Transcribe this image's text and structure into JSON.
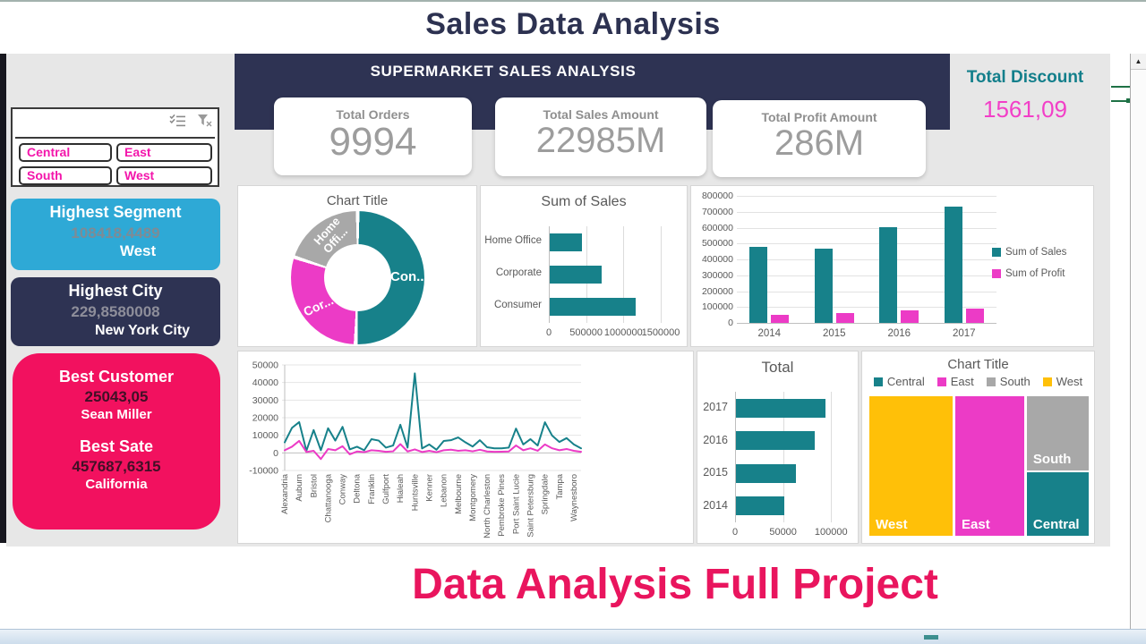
{
  "window": {
    "page_title": "Sales Data Analysis",
    "footer_title": "Data Analysis Full Project"
  },
  "header": {
    "title": "SUPERMARKET SALES ANALYSIS",
    "kpis": [
      {
        "label": "Total Orders",
        "value": "9994"
      },
      {
        "label": "Total Sales Amount",
        "value": "22985M"
      },
      {
        "label": "Total Profit Amount",
        "value": "286M"
      }
    ],
    "discount": {
      "label": "Total Discount",
      "value": "1561,09"
    }
  },
  "slicer": {
    "icons": [
      "multi-select-icon",
      "clear-filter-icon"
    ],
    "items": [
      "Central",
      "East",
      "South",
      "West"
    ]
  },
  "info_cards": {
    "highest_segment": {
      "title": "Highest Segment",
      "value": "108418,4489",
      "name": "West"
    },
    "highest_city": {
      "title": "Highest City",
      "value": "229,8580008",
      "name": "New York City"
    },
    "best": {
      "customer_title": "Best Customer",
      "customer_value": "25043,05",
      "customer_name": "Sean Miller",
      "state_title": "Best Sate",
      "state_value": "457687,6315",
      "state_name": "California"
    }
  },
  "colors": {
    "teal": "#17818A",
    "magenta": "#EC3BC6",
    "gray": "#A8A8A8",
    "yellow": "#FFC008",
    "navy": "#2E3353",
    "cyan_card": "#2EA9D6",
    "pink_card": "#F2115F",
    "footer_pink": "#E9155E",
    "slicer_pink": "#F316AB",
    "discount_teal": "#137F8B",
    "discount_pink": "#F23FC7",
    "excel_green": "#1E7145"
  },
  "scrollbar": {
    "up_arrow": "▲"
  },
  "chart_data": [
    {
      "type": "pie",
      "title": "Chart Title",
      "categories": [
        "Consumer",
        "Corporate",
        "Home Office"
      ],
      "displayed_labels": [
        "Con...",
        "Cor...",
        "Home Offi..."
      ],
      "values": [
        50.5,
        29.5,
        20
      ],
      "colors": [
        "#17818A",
        "#EC3BC6",
        "#A8A8A8"
      ],
      "donut_hole": true
    },
    {
      "type": "bar",
      "orientation": "horizontal",
      "title": "Sum of Sales",
      "categories": [
        "Home Office",
        "Corporate",
        "Consumer"
      ],
      "values": [
        430000,
        700000,
        1150000
      ],
      "xlim": [
        0,
        1500000
      ],
      "xticks": [
        0,
        500000,
        1000000,
        1500000
      ],
      "color": "#17818A"
    },
    {
      "type": "bar",
      "orientation": "vertical",
      "title": "",
      "categories": [
        "2014",
        "2015",
        "2016",
        "2017"
      ],
      "series": [
        {
          "name": "Sum of Sales",
          "color": "#17818A",
          "values": [
            480000,
            465000,
            605000,
            730000
          ]
        },
        {
          "name": "Sum of Profit",
          "color": "#EC3BC6",
          "values": [
            48000,
            62000,
            80000,
            90000
          ]
        }
      ],
      "ylim": [
        0,
        800000
      ],
      "yticks": [
        0,
        100000,
        200000,
        300000,
        400000,
        500000,
        600000,
        700000,
        800000
      ],
      "legend_position": "right"
    },
    {
      "type": "line",
      "title": "",
      "categories": [
        "Alexandria",
        "Auburn",
        "Bristol",
        "Chattanooga",
        "Conway",
        "Deltona",
        "Franklin",
        "Gulfport",
        "Hialeah",
        "Huntsville",
        "Kenner",
        "Lebanon",
        "Melbourne",
        "Montgomery",
        "North Charleston",
        "Pembroke Pines",
        "Port Saint Lucie",
        "Saint Petersburg",
        "Springdale",
        "Tampa",
        "Waynesboro"
      ],
      "label_every": 2,
      "series": [
        {
          "name": "Sum of Sales",
          "color": "#17818A",
          "values": [
            6000,
            14200,
            17500,
            1200,
            13000,
            1500,
            14000,
            7000,
            14800,
            2000,
            3500,
            1500,
            7800,
            7000,
            3000,
            4200,
            16000,
            3000,
            45200,
            2500,
            4800,
            1800,
            6800,
            7200,
            8800,
            6000,
            3600,
            7200,
            3200,
            2600,
            2600,
            3000,
            13800,
            4800,
            7800,
            4200,
            17400,
            9800,
            6200,
            8400,
            4800,
            2600
          ]
        },
        {
          "name": "Sum of Profit",
          "color": "#EC3BC6",
          "values": [
            1500,
            3500,
            6800,
            500,
            1200,
            -3500,
            2200,
            1500,
            3800,
            -800,
            800,
            400,
            1500,
            1200,
            600,
            900,
            5000,
            800,
            2000,
            500,
            1200,
            400,
            1500,
            1800,
            1200,
            1500,
            900,
            1800,
            800,
            600,
            700,
            800,
            4200,
            1500,
            2600,
            1200,
            4800,
            2600,
            1500,
            2200,
            1200,
            600
          ]
        }
      ],
      "ylim": [
        -10000,
        50000
      ],
      "yticks": [
        50000,
        40000,
        30000,
        20000,
        10000,
        0,
        -10000
      ],
      "legend_position": "right"
    },
    {
      "type": "bar",
      "orientation": "horizontal",
      "title": "Total",
      "categories": [
        "2017",
        "2016",
        "2015",
        "2014"
      ],
      "values": [
        93000,
        82000,
        62000,
        50000
      ],
      "xlim": [
        0,
        110000
      ],
      "xticks": [
        0,
        50000,
        100000
      ],
      "color": "#17818A"
    },
    {
      "type": "treemap",
      "title": "Chart Title",
      "legend": [
        {
          "name": "Central",
          "color": "#17818A"
        },
        {
          "name": "East",
          "color": "#EC3BC6"
        },
        {
          "name": "South",
          "color": "#A8A8A8"
        },
        {
          "name": "West",
          "color": "#FFC008"
        }
      ],
      "rects": [
        {
          "name": "West",
          "color": "#FFC008",
          "x": 0,
          "y": 0,
          "w": 38,
          "h": 100
        },
        {
          "name": "East",
          "color": "#EC3BC6",
          "x": 39.2,
          "y": 0,
          "w": 31.4,
          "h": 100
        },
        {
          "name": "South",
          "color": "#A8A8A8",
          "x": 71.8,
          "y": 0,
          "w": 28.2,
          "h": 53.5
        },
        {
          "name": "Central",
          "color": "#17818A",
          "x": 71.8,
          "y": 54.8,
          "w": 28.2,
          "h": 45.2
        }
      ]
    }
  ]
}
